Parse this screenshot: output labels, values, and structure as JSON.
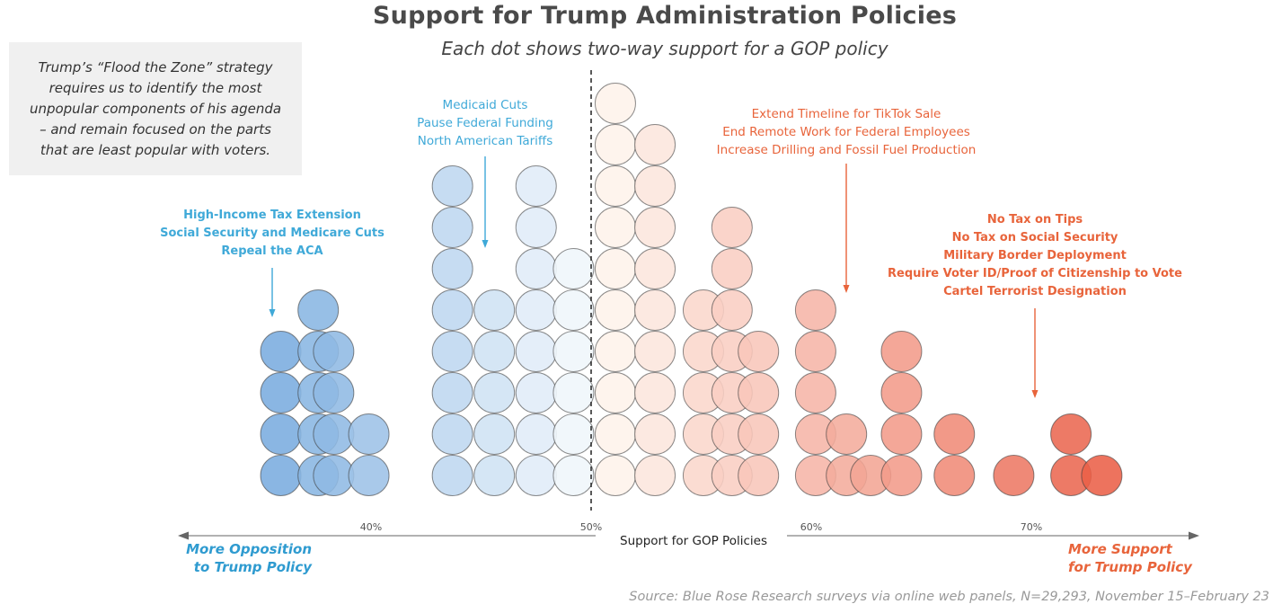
{
  "title": "Support for Trump Administration Policies",
  "subtitle": "Each dot shows two-way support for a GOP policy",
  "note_lines": [
    "Trump’s “Flood the Zone” strategy",
    "requires us to identify the most",
    "unpopular components of his agenda",
    "– and remain focused on the parts",
    "that are least popular with voters."
  ],
  "source": "Source: Blue Rose Research surveys via online web panels, N=29,293, November 15–February 23",
  "extremes": {
    "left_lines": [
      "More Opposition",
      "to Trump Policy"
    ],
    "right_lines": [
      "More Support",
      "for Trump Policy"
    ]
  },
  "colors": {
    "blue": "#3fa9d8",
    "orange": "#e8643b",
    "axis": "#666666",
    "text": "#4a4a4a"
  },
  "chart_data": {
    "type": "scatter",
    "variant": "dot-histogram",
    "title": "Support for Trump Administration Policies",
    "xlabel": "Support for GOP Policies",
    "xlim": [
      31,
      74
    ],
    "xticks": [
      40,
      50,
      60,
      70
    ],
    "xtick_labels": [
      "40%",
      "50%",
      "60%",
      "70%"
    ],
    "midline": 50,
    "columns": [
      {
        "x": 35.9,
        "count": 4
      },
      {
        "x": 37.6,
        "count": 5
      },
      {
        "x": 38.3,
        "count": 4
      },
      {
        "x": 39.9,
        "count": 2
      },
      {
        "x": 43.7,
        "count": 8
      },
      {
        "x": 45.6,
        "count": 5
      },
      {
        "x": 47.5,
        "count": 8
      },
      {
        "x": 49.2,
        "count": 6
      },
      {
        "x": 51.1,
        "count": 10
      },
      {
        "x": 52.9,
        "count": 9
      },
      {
        "x": 55.1,
        "count": 5
      },
      {
        "x": 56.4,
        "count": 7
      },
      {
        "x": 57.6,
        "count": 4
      },
      {
        "x": 60.2,
        "count": 5
      },
      {
        "x": 61.6,
        "count": 2
      },
      {
        "x": 62.7,
        "count": 1
      },
      {
        "x": 64.1,
        "count": 4
      },
      {
        "x": 66.5,
        "count": 2
      },
      {
        "x": 69.2,
        "count": 1
      },
      {
        "x": 71.8,
        "count": 2
      },
      {
        "x": 73.2,
        "count": 1
      }
    ],
    "annotations": [
      {
        "lines": [
          "High-Income Tax Extension",
          "Social Security and Medicare Cuts",
          "Repeal the ACA"
        ],
        "color": "blue",
        "bold": true,
        "arrow_x": 35.9
      },
      {
        "lines": [
          "Medicaid Cuts",
          "Pause Federal Funding",
          "North American Tariffs"
        ],
        "color": "blue",
        "bold": false,
        "arrow_x": 46.5
      },
      {
        "lines": [
          "Extend Timeline for TikTok Sale",
          "End Remote Work for Federal Employees",
          "Increase Drilling and Fossil Fuel Production"
        ],
        "color": "orange",
        "bold": false,
        "arrow_x": 61.5
      },
      {
        "lines": [
          "No Tax on Tips",
          "No Tax on Social Security",
          "Military Border Deployment",
          "Require Voter ID/Proof of Citizenship to Vote",
          "Cartel Terrorist Designation"
        ],
        "color": "orange",
        "bold": true,
        "arrow_x": 70.2
      }
    ]
  }
}
